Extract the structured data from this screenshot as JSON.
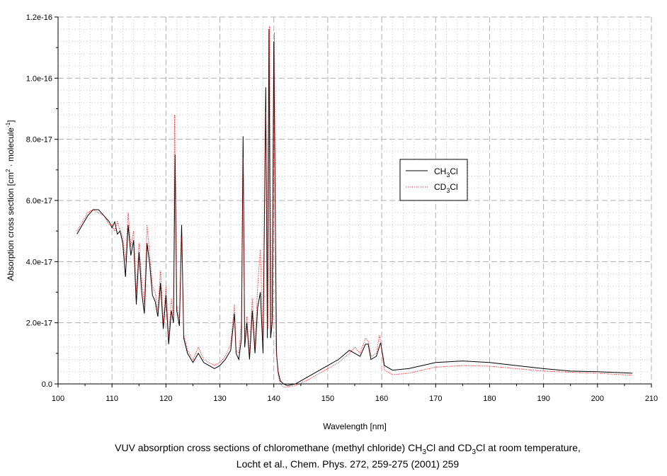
{
  "chart_data": {
    "type": "line",
    "xlabel": "Wavelength [nm]",
    "ylabel": {
      "base": "Absorption cross section [cm",
      "sup1": "2",
      "mid": " · molecule",
      "sup2": "-1",
      "end": "]"
    },
    "xlim": [
      100,
      210
    ],
    "ylim": [
      0,
      1.2e-16
    ],
    "xticks": [
      100,
      110,
      120,
      130,
      140,
      150,
      160,
      170,
      180,
      190,
      200,
      210
    ],
    "yticks": [
      0,
      2e-17,
      4e-17,
      6e-17,
      8e-17,
      1e-16,
      1.2e-16
    ],
    "ytick_labels": [
      "0.0",
      "2.0e-17",
      "4.0e-17",
      "6.0e-17",
      "8.0e-17",
      "1.0e-16",
      "1.2e-16"
    ],
    "grid": true,
    "legend_position": "center-right",
    "y_unit_scale": 1e-17,
    "series": [
      {
        "name": "CH3Cl",
        "label": {
          "a": "CH",
          "sub": "3",
          "b": "Cl"
        },
        "color": "#000000",
        "style": "solid",
        "x": [
          103.5,
          104.5,
          105.5,
          106.5,
          107.5,
          108.5,
          109.5,
          110,
          110.5,
          111,
          111.5,
          112,
          112.5,
          113,
          113.5,
          114,
          114.5,
          115,
          115.5,
          116,
          116.5,
          117,
          117.5,
          118,
          118.5,
          119,
          119.5,
          120,
          120.5,
          121,
          121.4,
          121.7,
          122,
          122.5,
          122.9,
          123.3,
          124,
          125,
          126,
          127,
          128,
          129,
          130,
          131,
          132,
          132.7,
          133,
          133.5,
          134,
          134.3,
          134.6,
          135,
          135.5,
          136,
          136.5,
          137,
          137.5,
          138,
          138.5,
          138.8,
          139.1,
          139.4,
          139.7,
          140,
          140.5,
          140.8,
          141.2,
          141.8,
          142.5,
          144,
          146,
          148,
          150,
          152,
          154,
          155,
          156,
          157,
          157.5,
          158,
          159,
          159.8,
          160.5,
          162,
          165,
          170,
          175,
          180,
          185,
          190,
          195,
          200,
          206.5
        ],
        "y": [
          4.9,
          5.2,
          5.5,
          5.7,
          5.7,
          5.5,
          5.3,
          5.1,
          5.3,
          4.9,
          5.0,
          4.6,
          3.5,
          5.2,
          4.2,
          4.7,
          2.6,
          4.3,
          3.0,
          2.3,
          4.6,
          3.9,
          2.9,
          2.7,
          2.2,
          3.3,
          1.8,
          2.9,
          1.3,
          2.4,
          2.0,
          7.5,
          2.4,
          1.9,
          5.2,
          1.5,
          1.0,
          0.7,
          1.0,
          0.7,
          0.6,
          0.5,
          0.6,
          0.8,
          1.1,
          2.3,
          1.0,
          0.8,
          1.5,
          8.1,
          1.2,
          2.0,
          0.8,
          2.4,
          1.0,
          2.5,
          3.0,
          1.0,
          9.7,
          1.5,
          11.6,
          1.5,
          2.0,
          11.2,
          1.0,
          0.4,
          0.1,
          0.0,
          -0.05,
          0.0,
          0.2,
          0.4,
          0.6,
          0.8,
          1.1,
          1.0,
          0.9,
          1.3,
          1.3,
          0.8,
          0.9,
          1.35,
          0.6,
          0.45,
          0.5,
          0.7,
          0.75,
          0.7,
          0.6,
          0.5,
          0.42,
          0.4,
          0.35
        ]
      },
      {
        "name": "CD3Cl",
        "label": {
          "a": "CD",
          "sub": "3",
          "b": "Cl"
        },
        "color": "#ff0000",
        "style": "dotted",
        "x": [
          103.5,
          104.5,
          105.5,
          106.5,
          107.5,
          108.5,
          109.5,
          110,
          110.5,
          111,
          111.5,
          112,
          112.5,
          113,
          113.5,
          114,
          114.5,
          115,
          115.5,
          116,
          116.5,
          117,
          117.5,
          118,
          118.5,
          119,
          119.5,
          120,
          120.5,
          121,
          121.4,
          121.6,
          122,
          122.5,
          122.9,
          123.3,
          124,
          125,
          126,
          127,
          128,
          129,
          130,
          131,
          132,
          132.7,
          133,
          133.5,
          134,
          134.3,
          134.6,
          135,
          135.5,
          136,
          136.5,
          137,
          137.5,
          138,
          138.5,
          138.9,
          139.2,
          139.5,
          139.8,
          140.1,
          140.4,
          140.8,
          141.2,
          141.8,
          142.5,
          144,
          146,
          148,
          150,
          152,
          154,
          155,
          156,
          157,
          157.5,
          158,
          159,
          159.6,
          160.5,
          162,
          165,
          170,
          175,
          180,
          185,
          190,
          195,
          200,
          206.5
        ],
        "y": [
          5.0,
          5.3,
          5.6,
          5.7,
          5.6,
          5.5,
          5.2,
          5.2,
          5.0,
          5.3,
          5.0,
          4.8,
          4.0,
          5.6,
          4.5,
          5.0,
          3.0,
          4.6,
          3.4,
          2.6,
          5.2,
          4.2,
          3.2,
          3.0,
          2.4,
          3.7,
          2.0,
          3.2,
          1.5,
          2.8,
          2.2,
          8.8,
          2.6,
          2.1,
          4.8,
          1.6,
          1.1,
          0.8,
          1.2,
          0.8,
          0.7,
          0.6,
          0.7,
          0.9,
          1.3,
          2.6,
          1.1,
          1.0,
          2.0,
          7.4,
          1.4,
          2.2,
          1.0,
          2.8,
          1.2,
          3.2,
          4.4,
          1.3,
          8.9,
          1.8,
          11.7,
          1.8,
          2.2,
          11.5,
          1.2,
          0.3,
          0.0,
          -0.1,
          -0.1,
          -0.05,
          0.1,
          0.3,
          0.5,
          0.7,
          1.0,
          1.2,
          1.0,
          1.5,
          1.4,
          0.9,
          1.0,
          1.6,
          0.45,
          0.3,
          0.35,
          0.55,
          0.6,
          0.58,
          0.5,
          0.42,
          0.38,
          0.35,
          0.28
        ]
      }
    ]
  },
  "caption": {
    "line1": {
      "a": "VUV absorption cross sections of chloromethane (methyl chloride) CH",
      "s1": "3",
      "b": "Cl and CD",
      "s2": "3",
      "c": "Cl at room temperature,"
    },
    "line2": "Locht et al., Chem. Phys. 272, 259-275 (2001) 259"
  }
}
